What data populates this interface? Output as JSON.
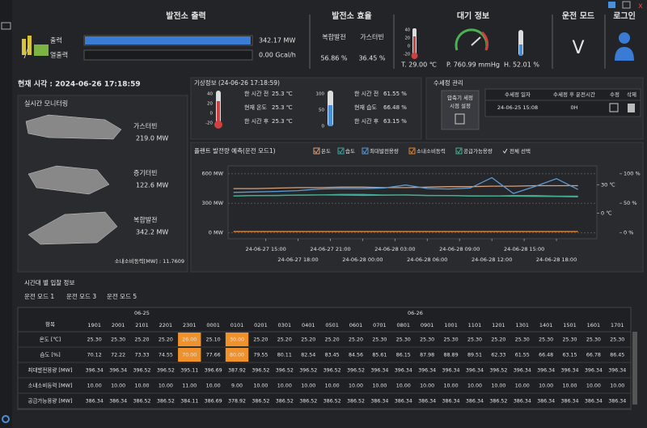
{
  "header": {
    "power": {
      "title": "발전소 출력",
      "rows": [
        {
          "label": "출력",
          "value": "342.17 MW"
        },
        {
          "label": "열출력",
          "value": "0.00 Gcal/h"
        }
      ]
    },
    "efficiency": {
      "title": "발전소 효율",
      "labels": [
        "복합발전",
        "가스터빈"
      ],
      "values": [
        "56.86 %",
        "36.45 %"
      ]
    },
    "atmosphere": {
      "title": "대기 정보",
      "thermo_ticks": [
        "40",
        "20",
        "0",
        "-20"
      ],
      "temperature": "T. 29.00 ℃",
      "pressure": "P. 760.99 mmHg",
      "humidity": "H. 52.01 %"
    },
    "mode": {
      "title": "운전 모드",
      "value": "V"
    },
    "login": "로그인"
  },
  "current_time": "현재 시각 : 2024-06-26 17:18:59",
  "monitoring": {
    "title": "실시간 모니터링",
    "units": [
      {
        "name": "가스터빈",
        "value": "219.0 MW"
      },
      {
        "name": "증기터빈",
        "value": "122.6 MW"
      },
      {
        "name": "복합발전",
        "value": "342.2 MW"
      }
    ],
    "internal_power": "소내소비동력[MW] : 11.7609"
  },
  "weather": {
    "title": "기상정보 (24-06-26 17:18:59)",
    "temp_ticks": [
      "40",
      "20",
      "0",
      "-20"
    ],
    "temperature_rows": [
      {
        "label": "한 시간 전",
        "value": "25.3 ℃"
      },
      {
        "label": "현재 온도",
        "value": "25.3 ℃"
      },
      {
        "label": "한 시간 후",
        "value": "25.3 ℃"
      }
    ],
    "humidity_ticks": [
      "100",
      "50",
      "0"
    ],
    "humidity_rows": [
      {
        "label": "한 시간 전",
        "value": "61.55 %"
      },
      {
        "label": "현재 습도",
        "value": "66.48 %"
      },
      {
        "label": "한 시간 후",
        "value": "63.15 %"
      }
    ]
  },
  "wash": {
    "title": "수세정 관리",
    "button_lines": [
      "압축기 세정",
      "시점 설정"
    ],
    "headers": [
      "수세정 일자",
      "수세정 후 운전시간",
      "수정",
      "삭제"
    ],
    "rows": [
      {
        "date": "24-06-25 15:08",
        "hours": "0H"
      }
    ]
  },
  "chart_data": {
    "type": "line",
    "title": "플랜트 발전량 예측(운전 모드1)",
    "select_all": "전체 선택",
    "x": [
      "24-06-27 12:00",
      "24-06-27 14:00",
      "24-06-27 16:00",
      "24-06-27 18:00",
      "24-06-27 20:00",
      "24-06-27 22:00",
      "24-06-28 00:00",
      "24-06-28 02:00",
      "24-06-28 04:00",
      "24-06-28 06:00",
      "24-06-28 08:00",
      "24-06-28 10:00",
      "24-06-28 12:00",
      "24-06-28 14:00",
      "24-06-28 16:00",
      "24-06-28 18:00",
      "24-06-28 20:00"
    ],
    "xlim": [
      "24-06-27 11:30",
      "24-06-28 21:45"
    ],
    "xticks": [
      "24-06-27 15:00",
      "24-06-27 18:00",
      "24-06-27 21:00",
      "24-06-28 00:00",
      "24-06-28 03:00",
      "24-06-28 06:00",
      "24-06-28 09:00",
      "24-06-28 12:00",
      "24-06-28 15:00",
      "24-06-28 18:00"
    ],
    "ylim": [
      -60,
      680
    ],
    "yticks": [
      {
        "value": 600,
        "label": "600 MW"
      },
      {
        "value": 300,
        "label": "300 MW"
      },
      {
        "value": 0,
        "label": "0 MW"
      }
    ],
    "y2lim": [
      -27,
      50
    ],
    "y2ticks": [
      {
        "value": 30,
        "label": "30 ℃"
      },
      {
        "value": 0,
        "label": "0 ℃"
      }
    ],
    "y3lim": [
      -10,
      113.3
    ],
    "y3ticks": [
      {
        "value": 100,
        "label": "100 %"
      },
      {
        "value": 50,
        "label": "50 %"
      },
      {
        "value": 0,
        "label": "0 %"
      }
    ],
    "grid": true,
    "series": [
      {
        "name": "온도",
        "color": "#d9a07a",
        "axis": "y2",
        "values": [
          26,
          26,
          26.5,
          27,
          27,
          27.5,
          27.5,
          27,
          27,
          27.5,
          28,
          28,
          28.5,
          28.5,
          29,
          29,
          29
        ]
      },
      {
        "name": "습도",
        "color": "#3aa6a0",
        "axis": "y3",
        "values": [
          62,
          63,
          63,
          64,
          64,
          65,
          65,
          64,
          64,
          63,
          63,
          62,
          62,
          63,
          63,
          62,
          62
        ]
      },
      {
        "name": "최대발전용량",
        "color": "#5b9bd5",
        "axis": "y",
        "values": [
          410,
          415,
          420,
          428,
          445,
          450,
          448,
          455,
          485,
          450,
          445,
          455,
          560,
          400,
          470,
          550,
          440
        ]
      },
      {
        "name": "소내소비동력",
        "color": "#e0862f",
        "axis": "y",
        "values": [
          12,
          12,
          12,
          12,
          12,
          12,
          12,
          12,
          12,
          12,
          12,
          12,
          12,
          12,
          12,
          12,
          12
        ]
      },
      {
        "name": "공급가능용량",
        "color": "#46b08c",
        "axis": "y",
        "values": [
          375,
          378,
          380,
          382,
          385,
          383,
          380,
          382,
          385,
          380,
          378,
          376,
          375,
          372,
          370,
          368,
          365
        ]
      }
    ]
  },
  "bid_table": {
    "title": "시간대 별 입찰 정보",
    "tabs": [
      "운전 모드 1",
      "운전 모드 3",
      "운전 모드 5"
    ],
    "item_header": "항목",
    "highlight_color": "#f0922b",
    "date_groups": [
      {
        "date": "06-25",
        "times": [
          "1901",
          "2001",
          "2101",
          "2201",
          "2301"
        ]
      },
      {
        "date": "06-26",
        "times": [
          "0001",
          "0101",
          "0201",
          "0301",
          "0401",
          "0501",
          "0601",
          "0701",
          "0801",
          "0901",
          "1001",
          "1101",
          "1201",
          "1301",
          "1401",
          "1501",
          "1601",
          "1701"
        ]
      }
    ],
    "rows": [
      {
        "label": "온도 [℃]",
        "highlighted": [
          "2301",
          "0101"
        ],
        "values": [
          "25.30",
          "25.30",
          "25.20",
          "25.20",
          "26.00",
          "25.10",
          "30.00",
          "25.20",
          "25.20",
          "25.20",
          "25.20",
          "25.20",
          "25.30",
          "25.30",
          "25.30",
          "25.30",
          "25.30",
          "25.20",
          "25.30",
          "25.30",
          "25.30",
          "25.30",
          "25.30"
        ]
      },
      {
        "label": "습도 [%]",
        "highlighted": [
          "2301",
          "0101"
        ],
        "values": [
          "70.12",
          "72.22",
          "73.33",
          "74.55",
          "70.00",
          "77.66",
          "80.00",
          "79.55",
          "80.11",
          "82.54",
          "83.45",
          "84.56",
          "85.61",
          "86.15",
          "87.98",
          "88.89",
          "89.51",
          "62.33",
          "61.55",
          "66.48",
          "63.15",
          "66.78",
          "86.45"
        ]
      },
      {
        "label": "최대발전용량 [MW]",
        "values": [
          "396.34",
          "396.34",
          "396.52",
          "396.52",
          "395.11",
          "396.69",
          "387.92",
          "396.52",
          "396.52",
          "396.52",
          "396.52",
          "396.52",
          "396.34",
          "396.34",
          "396.34",
          "396.34",
          "396.34",
          "396.52",
          "396.34",
          "396.34",
          "396.34",
          "396.34",
          "396.34"
        ]
      },
      {
        "label": "소내소비동력 [MW]",
        "values": [
          "10.00",
          "10.00",
          "10.00",
          "10.00",
          "11.00",
          "10.00",
          "9.00",
          "10.00",
          "10.00",
          "10.00",
          "10.00",
          "10.00",
          "10.00",
          "10.00",
          "10.00",
          "10.00",
          "10.00",
          "10.00",
          "10.00",
          "10.00",
          "10.00",
          "10.00",
          "10.00"
        ]
      },
      {
        "label": "공급가능용량 [MW]",
        "values": [
          "386.34",
          "386.34",
          "386.52",
          "386.52",
          "384.11",
          "386.69",
          "378.92",
          "386.52",
          "386.52",
          "386.52",
          "386.52",
          "386.52",
          "386.34",
          "386.34",
          "386.34",
          "386.34",
          "386.34",
          "386.52",
          "386.34",
          "386.34",
          "386.34",
          "386.34",
          "386.34"
        ]
      }
    ]
  }
}
